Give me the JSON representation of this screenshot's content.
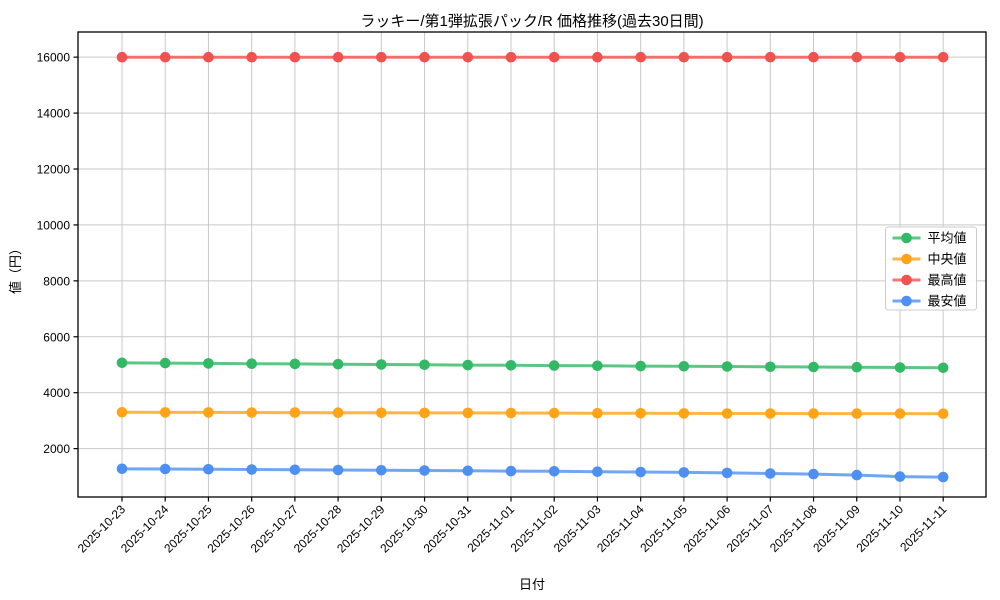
{
  "figure": {
    "title": "ラッキー/第1弾拡張パック/R 価格推移(過去30日間)",
    "xlabel": "日付",
    "ylabel": "値（円）",
    "background_color": "#ffffff"
  },
  "chart_data": {
    "type": "line",
    "x": [
      "2025-10-23",
      "2025-10-24",
      "2025-10-25",
      "2025-10-26",
      "2025-10-27",
      "2025-10-28",
      "2025-10-29",
      "2025-10-30",
      "2025-10-31",
      "2025-11-01",
      "2025-11-02",
      "2025-11-03",
      "2025-11-04",
      "2025-11-05",
      "2025-11-06",
      "2025-11-07",
      "2025-11-08",
      "2025-11-09",
      "2025-11-10",
      "2025-11-11"
    ],
    "series": [
      {
        "key": "mean",
        "name": "平均値",
        "color": "#33b865",
        "values": [
          5070,
          5058,
          5047,
          5038,
          5029,
          5018,
          5007,
          4997,
          4988,
          4979,
          4970,
          4961,
          4952,
          4944,
          4936,
          4928,
          4920,
          4911,
          4900,
          4890
        ]
      },
      {
        "key": "median",
        "name": "中央値",
        "color": "#ffa418",
        "values": [
          3300,
          3297,
          3294,
          3291,
          3288,
          3285,
          3282,
          3279,
          3276,
          3273,
          3270,
          3267,
          3264,
          3261,
          3258,
          3255,
          3253,
          3252,
          3251,
          3250
        ]
      },
      {
        "key": "max",
        "name": "最高値",
        "color": "#f2524f",
        "values": [
          16000,
          16000,
          16000,
          16000,
          16000,
          16000,
          16000,
          16000,
          16000,
          16000,
          16000,
          16000,
          16000,
          16000,
          16000,
          16000,
          16000,
          16000,
          16000,
          16000
        ]
      },
      {
        "key": "min",
        "name": "最安値",
        "color": "#4d90f2",
        "values": [
          1280,
          1271,
          1262,
          1253,
          1244,
          1235,
          1226,
          1217,
          1208,
          1198,
          1188,
          1176,
          1163,
          1148,
          1131,
          1112,
          1090,
          1055,
          1000,
          980
        ]
      }
    ],
    "ylim": [
      270,
      16900
    ],
    "yticks": [
      2000,
      4000,
      6000,
      8000,
      10000,
      12000,
      14000,
      16000
    ],
    "grid": true,
    "legend_position": "right-center",
    "legend": [
      "平均値",
      "中央値",
      "最高値",
      "最安値"
    ]
  },
  "style": {
    "grid_color": "#c9c9c9",
    "axis_color": "#000000",
    "legend_border_color": "#cccccc",
    "legend_background": "#ffffff",
    "line_opacity": 0.8
  }
}
